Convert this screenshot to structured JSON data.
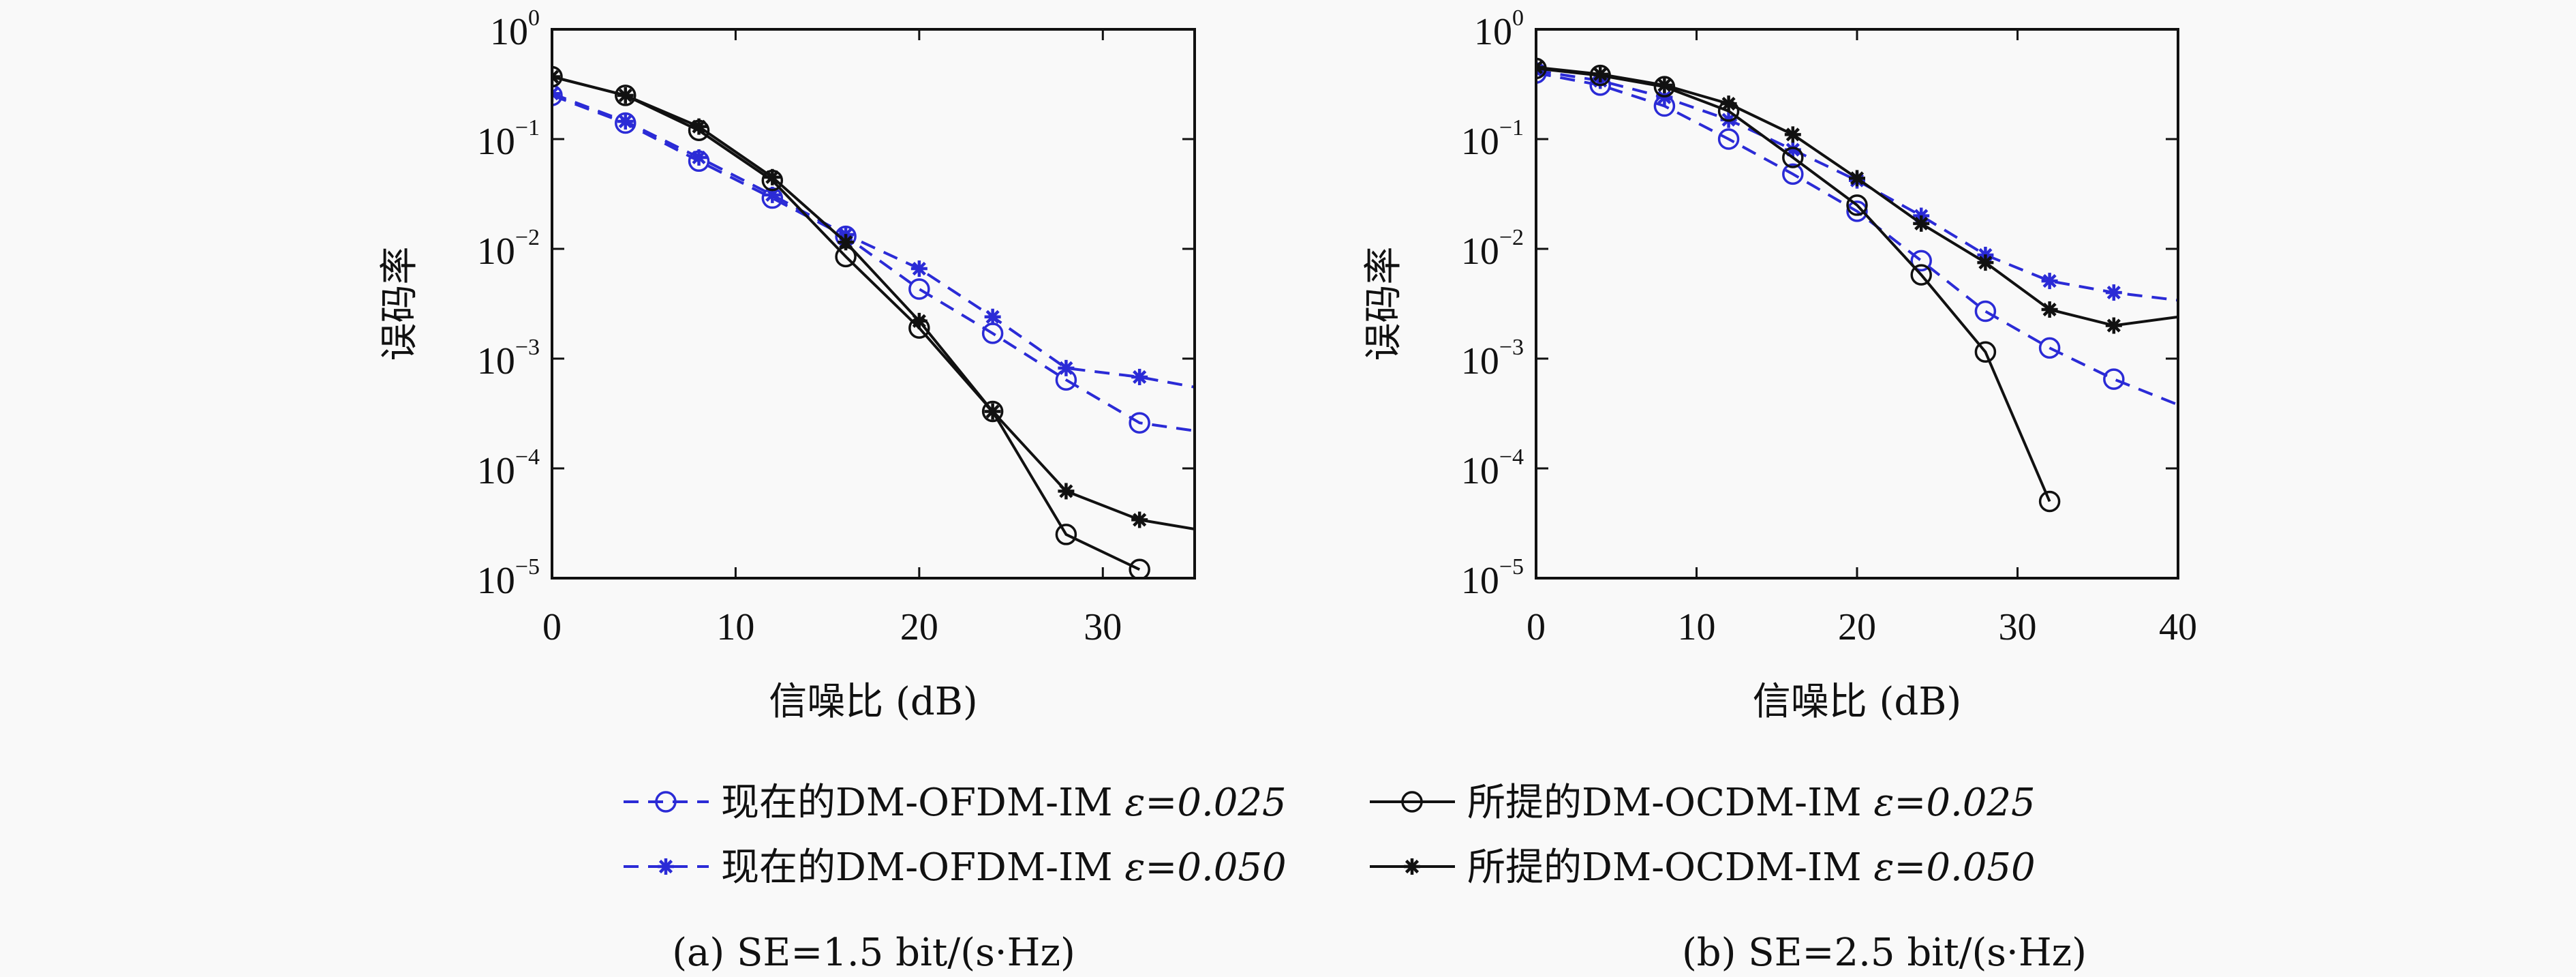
{
  "chart_data": [
    {
      "type": "line",
      "caption": "(a) SE=1.5 bit/(s·Hz)",
      "xlabel": "信噪比 (dB)",
      "ylabel": "误码率",
      "xlim": [
        0,
        35
      ],
      "ylim": [
        1e-05,
        1
      ],
      "yscale": "log",
      "xticks": [
        0,
        10,
        20,
        30
      ],
      "yticks_exponents": [
        0,
        -1,
        -2,
        -3,
        -4,
        -5
      ],
      "grid": false,
      "series": [
        {
          "name": "现在的DM-OFDM-IM ε=0.025",
          "color": "#2b2bd6",
          "dash": true,
          "marker": "circle",
          "x": [
            0,
            4,
            8,
            12,
            16,
            20,
            24,
            28,
            32,
            35
          ],
          "y": [
            0.25,
            0.14,
            0.063,
            0.029,
            0.013,
            0.0043,
            0.0017,
            0.00064,
            0.00026,
            0.00022
          ]
        },
        {
          "name": "现在的DM-OFDM-IM ε=0.050",
          "color": "#2b2bd6",
          "dash": true,
          "marker": "star",
          "x": [
            0,
            4,
            8,
            12,
            16,
            20,
            24,
            28,
            32,
            35
          ],
          "y": [
            0.26,
            0.145,
            0.068,
            0.031,
            0.0135,
            0.0066,
            0.0024,
            0.00082,
            0.00068,
            0.00055
          ]
        },
        {
          "name": "所提的DM-OCDM-IM ε=0.025",
          "color": "#111111",
          "dash": false,
          "marker": "circle",
          "x": [
            0,
            4,
            8,
            12,
            16,
            20,
            24,
            28,
            32
          ],
          "y": [
            0.37,
            0.25,
            0.12,
            0.042,
            0.0085,
            0.0019,
            0.00033,
            2.5e-05,
            1.2e-05
          ]
        },
        {
          "name": "所提的DM-OCDM-IM ε=0.050",
          "color": "#111111",
          "dash": false,
          "marker": "star",
          "x": [
            0,
            4,
            8,
            12,
            16,
            20,
            24,
            28,
            32,
            35
          ],
          "y": [
            0.37,
            0.25,
            0.13,
            0.045,
            0.0115,
            0.0022,
            0.00033,
            6.2e-05,
            3.4e-05,
            2.8e-05
          ]
        }
      ]
    },
    {
      "type": "line",
      "caption": "(b) SE=2.5 bit/(s·Hz)",
      "xlabel": "信噪比 (dB)",
      "ylabel": "误码率",
      "xlim": [
        0,
        40
      ],
      "ylim": [
        1e-05,
        1
      ],
      "yscale": "log",
      "xticks": [
        0,
        10,
        20,
        30,
        40
      ],
      "yticks_exponents": [
        0,
        -1,
        -2,
        -3,
        -4,
        -5
      ],
      "grid": false,
      "series": [
        {
          "name": "现在的DM-OFDM-IM ε=0.025",
          "color": "#2b2bd6",
          "dash": true,
          "marker": "circle",
          "x": [
            0,
            4,
            8,
            12,
            16,
            20,
            24,
            28,
            32,
            36,
            40
          ],
          "y": [
            0.4,
            0.31,
            0.2,
            0.1,
            0.048,
            0.022,
            0.0078,
            0.0027,
            0.00125,
            0.00065,
            0.00038
          ]
        },
        {
          "name": "现在的DM-OFDM-IM ε=0.050",
          "color": "#2b2bd6",
          "dash": true,
          "marker": "star",
          "x": [
            0,
            4,
            8,
            12,
            16,
            20,
            24,
            28,
            32,
            36,
            40
          ],
          "y": [
            0.42,
            0.34,
            0.24,
            0.15,
            0.08,
            0.042,
            0.02,
            0.0088,
            0.0051,
            0.004,
            0.0034
          ]
        },
        {
          "name": "所提的DM-OCDM-IM ε=0.025",
          "color": "#111111",
          "dash": false,
          "marker": "circle",
          "x": [
            0,
            4,
            8,
            12,
            16,
            20,
            24,
            28,
            32
          ],
          "y": [
            0.44,
            0.38,
            0.3,
            0.18,
            0.068,
            0.025,
            0.0058,
            0.00115,
            5e-05
          ]
        },
        {
          "name": "所提的DM-OCDM-IM ε=0.050",
          "color": "#111111",
          "dash": false,
          "marker": "star",
          "x": [
            0,
            4,
            8,
            12,
            16,
            20,
            24,
            28,
            32,
            36,
            40
          ],
          "y": [
            0.45,
            0.39,
            0.31,
            0.21,
            0.11,
            0.044,
            0.017,
            0.0075,
            0.0028,
            0.002,
            0.0024
          ]
        }
      ]
    }
  ],
  "legend": [
    {
      "label": "现在的DM-OFDM-IM",
      "param": "ε=0.025",
      "color": "#2b2bd6",
      "dash": true,
      "marker": "circle"
    },
    {
      "label": "所提的DM-OCDM-IM",
      "param": "ε=0.025",
      "color": "#111111",
      "dash": false,
      "marker": "circle"
    },
    {
      "label": "现在的DM-OFDM-IM",
      "param": "ε=0.050",
      "color": "#2b2bd6",
      "dash": true,
      "marker": "star"
    },
    {
      "label": "所提的DM-OCDM-IM",
      "param": "ε=0.050",
      "color": "#111111",
      "dash": false,
      "marker": "star"
    }
  ]
}
